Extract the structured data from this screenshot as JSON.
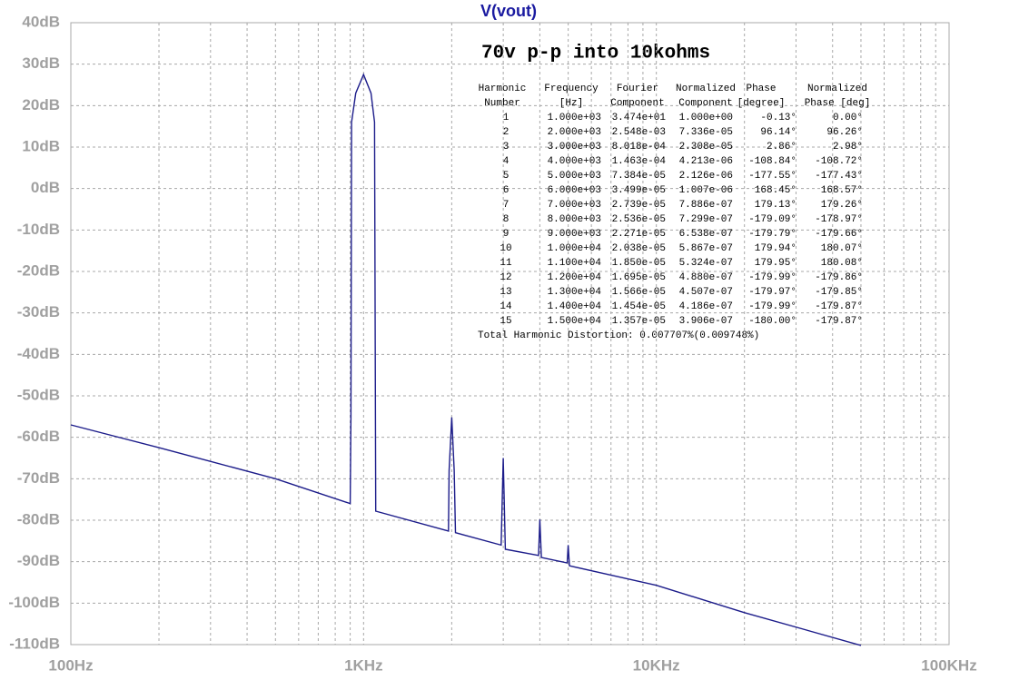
{
  "chart_data": {
    "type": "line",
    "title": "V(vout)",
    "xscale": "log",
    "grid": true,
    "color": "#1c1c8a",
    "xlim": [
      100,
      100000
    ],
    "ylim": [
      -110,
      40
    ],
    "xticks": [
      {
        "value": 100,
        "label": "100Hz"
      },
      {
        "value": 1000,
        "label": "1KHz"
      },
      {
        "value": 10000,
        "label": "10KHz"
      },
      {
        "value": 100000,
        "label": "100KHz"
      }
    ],
    "xminorticks": [
      200,
      300,
      400,
      500,
      600,
      700,
      800,
      900,
      2000,
      3000,
      4000,
      5000,
      6000,
      7000,
      8000,
      9000,
      20000,
      30000,
      40000,
      50000,
      60000,
      70000,
      80000,
      90000
    ],
    "yticks": [
      {
        "value": 40,
        "label": "40dB"
      },
      {
        "value": 30,
        "label": "30dB"
      },
      {
        "value": 20,
        "label": "20dB"
      },
      {
        "value": 10,
        "label": "10dB"
      },
      {
        "value": 0,
        "label": "0dB"
      },
      {
        "value": -10,
        "label": "-10dB"
      },
      {
        "value": -20,
        "label": "-20dB"
      },
      {
        "value": -30,
        "label": "-30dB"
      },
      {
        "value": -40,
        "label": "-40dB"
      },
      {
        "value": -50,
        "label": "-50dB"
      },
      {
        "value": -60,
        "label": "-60dB"
      },
      {
        "value": -70,
        "label": "-70dB"
      },
      {
        "value": -80,
        "label": "-80dB"
      },
      {
        "value": -90,
        "label": "-90dB"
      },
      {
        "value": -100,
        "label": "-100dB"
      },
      {
        "value": -110,
        "label": "-110dB"
      }
    ],
    "x": [
      100,
      200,
      500,
      900,
      905,
      910,
      940,
      1000,
      1060,
      1090,
      1100,
      1950,
      1960,
      2000,
      2040,
      2060,
      2950,
      3000,
      3050,
      3960,
      4000,
      4050,
      4960,
      5000,
      5050,
      10000,
      20000,
      50000
    ],
    "values": [
      -57,
      -62.5,
      -70,
      -76,
      -55,
      16,
      23,
      27.5,
      23,
      16,
      -77.8,
      -82.6,
      -68,
      -55.2,
      -68,
      -83,
      -86,
      -65,
      -87,
      -88.5,
      -79.8,
      -89,
      -90.3,
      -86,
      -91,
      -95.7,
      -102.3,
      -110.2
    ],
    "annotation": {
      "title": "70v p-p into 10kohms",
      "header": [
        [
          "Harmonic",
          "Number"
        ],
        [
          "Frequency",
          "[Hz]"
        ],
        [
          "Fourier",
          "Component"
        ],
        [
          "Normalized",
          "Component"
        ],
        [
          "Phase",
          "[degree]"
        ],
        [
          "Normalized",
          "Phase [deg]"
        ]
      ],
      "rows": [
        [
          "1",
          "1.000e+03",
          "3.474e+01",
          "1.000e+00",
          "-0.13°",
          "0.00°"
        ],
        [
          "2",
          "2.000e+03",
          "2.548e-03",
          "7.336e-05",
          "96.14°",
          "96.26°"
        ],
        [
          "3",
          "3.000e+03",
          "8.018e-04",
          "2.308e-05",
          "2.86°",
          "2.98°"
        ],
        [
          "4",
          "4.000e+03",
          "1.463e-04",
          "4.213e-06",
          "-108.84°",
          "-108.72°"
        ],
        [
          "5",
          "5.000e+03",
          "7.384e-05",
          "2.126e-06",
          "-177.55°",
          "-177.43°"
        ],
        [
          "6",
          "6.000e+03",
          "3.499e-05",
          "1.007e-06",
          "168.45°",
          "168.57°"
        ],
        [
          "7",
          "7.000e+03",
          "2.739e-05",
          "7.886e-07",
          "179.13°",
          "179.26°"
        ],
        [
          "8",
          "8.000e+03",
          "2.536e-05",
          "7.299e-07",
          "-179.09°",
          "-178.97°"
        ],
        [
          "9",
          "9.000e+03",
          "2.271e-05",
          "6.538e-07",
          "-179.79°",
          "-179.66°"
        ],
        [
          "10",
          "1.000e+04",
          "2.038e-05",
          "5.867e-07",
          "179.94°",
          "180.07°"
        ],
        [
          "11",
          "1.100e+04",
          "1.850e-05",
          "5.324e-07",
          "179.95°",
          "180.08°"
        ],
        [
          "12",
          "1.200e+04",
          "1.695e-05",
          "4.880e-07",
          "-179.99°",
          "-179.86°"
        ],
        [
          "13",
          "1.300e+04",
          "1.566e-05",
          "4.507e-07",
          "-179.97°",
          "-179.85°"
        ],
        [
          "14",
          "1.400e+04",
          "1.454e-05",
          "4.186e-07",
          "-179.99°",
          "-179.87°"
        ],
        [
          "15",
          "1.500e+04",
          "1.357e-05",
          "3.906e-07",
          "-180.00°",
          "-179.87°"
        ]
      ],
      "footer": "Total Harmonic Distortion: 0.007707%(0.009748%)"
    }
  }
}
